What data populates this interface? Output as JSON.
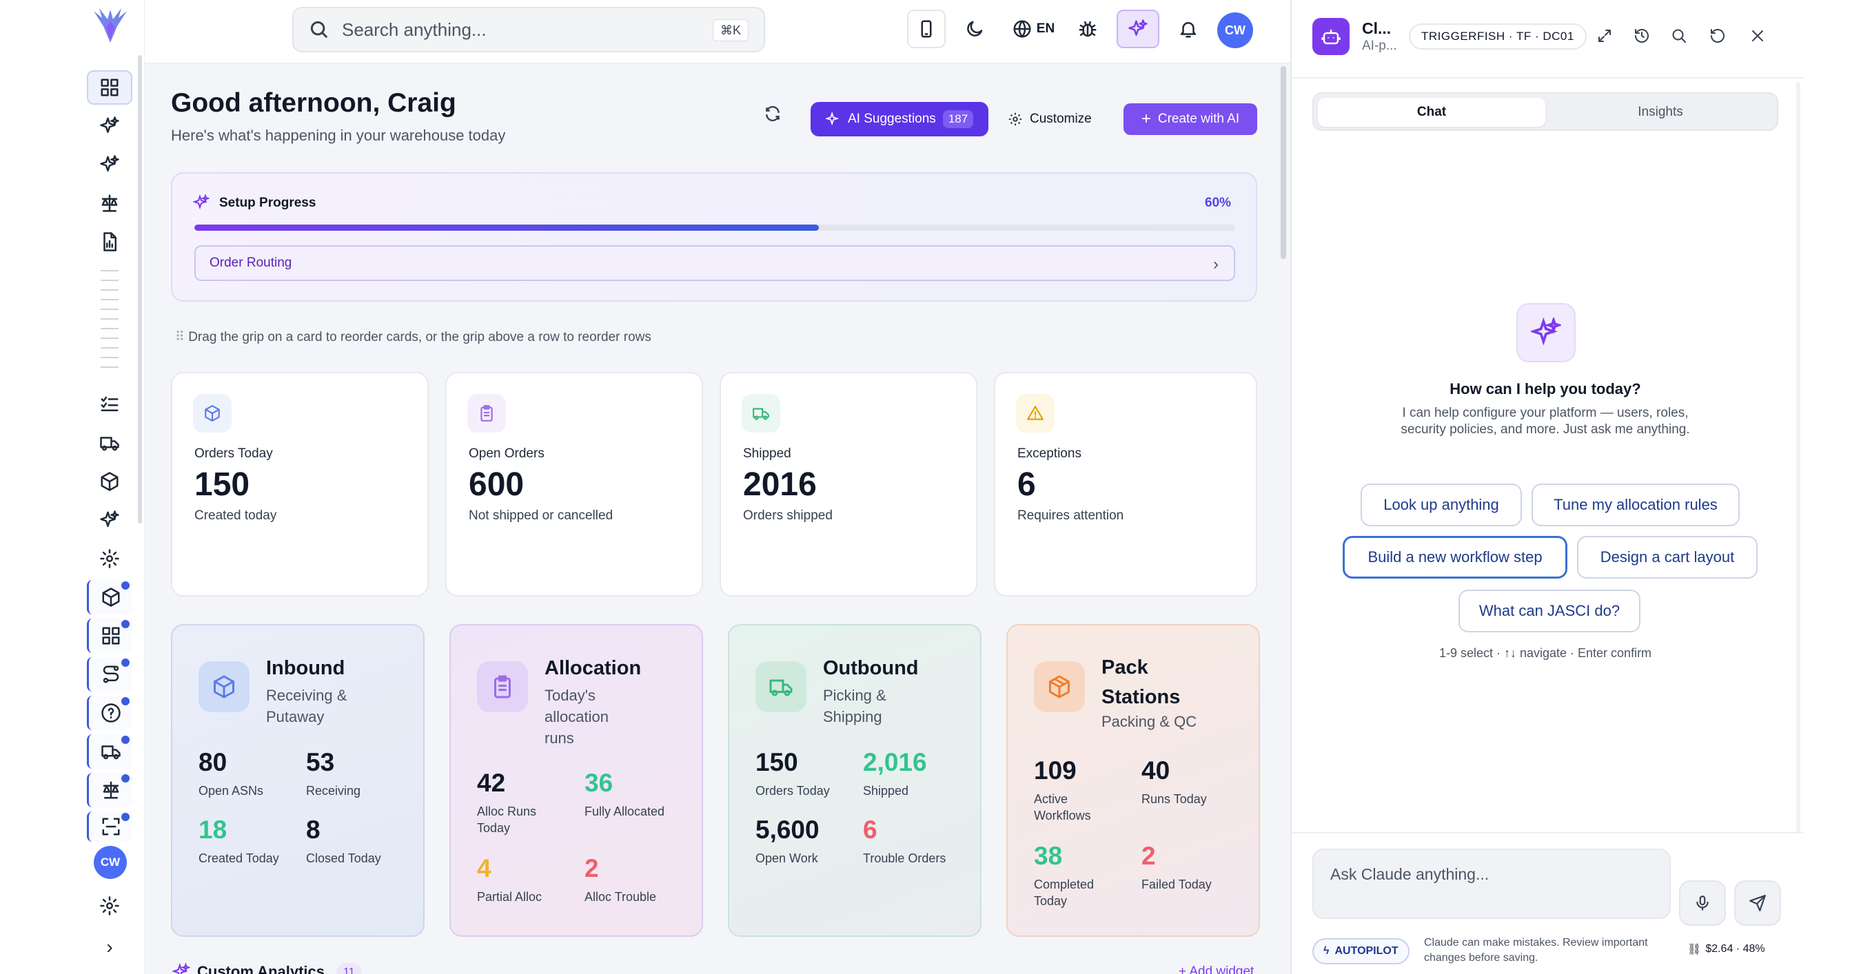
{
  "topbar": {
    "search_placeholder": "Search anything...",
    "search_shortcut": "⌘K",
    "language": "EN",
    "avatar_initials": "CW"
  },
  "sidebar": {
    "avatar_initials": "CW",
    "collapse_glyph": "›"
  },
  "header": {
    "greeting": "Good afternoon, Craig",
    "subtitle": "Here's what's happening in your warehouse today",
    "ai_suggestions_label": "AI Suggestions",
    "ai_suggestions_count": "187",
    "customize_label": "Customize",
    "create_label": "Create with AI"
  },
  "setup": {
    "title": "Setup Progress",
    "percent_label": "60%",
    "progress": 0.6,
    "current_step": "Order Routing"
  },
  "drag_hint": "Drag the grip on a card to reorder cards, or the grip above a row to reorder rows",
  "stats": [
    {
      "label": "Orders Today",
      "value": "150",
      "sub": "Created today",
      "icon": "box-icon"
    },
    {
      "label": "Open Orders",
      "value": "600",
      "sub": "Not shipped or cancelled",
      "icon": "clipboard-icon"
    },
    {
      "label": "Shipped",
      "value": "2016",
      "sub": "Orders shipped",
      "icon": "truck-icon"
    },
    {
      "label": "Exceptions",
      "value": "6",
      "sub": "Requires attention",
      "icon": "warning-icon"
    }
  ],
  "modules": {
    "inbound": {
      "title": "Inbound",
      "sub": "Receiving & Putaway",
      "metrics": [
        {
          "value": "80",
          "label": "Open ASNs"
        },
        {
          "value": "53",
          "label": "Receiving"
        },
        {
          "value": "18",
          "label": "Created Today"
        },
        {
          "value": "8",
          "label": "Closed Today"
        }
      ]
    },
    "allocation": {
      "title": "Allocation",
      "sub": "Today's allocation runs",
      "metrics": [
        {
          "value": "42",
          "label": "Alloc Runs Today"
        },
        {
          "value": "36",
          "label": "Fully Allocated"
        },
        {
          "value": "4",
          "label": "Partial Alloc"
        },
        {
          "value": "2",
          "label": "Alloc Trouble"
        }
      ]
    },
    "outbound": {
      "title": "Outbound",
      "sub": "Picking & Shipping",
      "metrics": [
        {
          "value": "150",
          "label": "Orders Today"
        },
        {
          "value": "2,016",
          "label": "Shipped"
        },
        {
          "value": "5,600",
          "label": "Open Work"
        },
        {
          "value": "6",
          "label": "Trouble Orders"
        }
      ]
    },
    "pack": {
      "title": "Pack Stations",
      "sub": "Packing & QC",
      "metrics": [
        {
          "value": "109",
          "label": "Active Workflows"
        },
        {
          "value": "40",
          "label": "Runs Today"
        },
        {
          "value": "38",
          "label": "Completed Today"
        },
        {
          "value": "2",
          "label": "Failed Today"
        }
      ]
    }
  },
  "custom_analytics": {
    "title": "Custom Analytics",
    "count": "11",
    "add_label": "+ Add widget"
  },
  "assistant": {
    "name": "Cl...",
    "sub": "AI-p...",
    "tenant": "TRIGGERFISH · TF · DC01",
    "tabs": [
      "Chat",
      "Insights"
    ],
    "hero_title": "How can I help you today?",
    "hero_text": "I can help configure your platform — users, roles, security policies, and more. Just ask me anything.",
    "suggestions": [
      "Look up anything",
      "Tune my allocation rules",
      "Build a new workflow step",
      "Design a cart layout",
      "What can JASCI do?"
    ],
    "keyboard_hint": "1-9 select · ↑↓ navigate · Enter confirm",
    "input_placeholder": "Ask Claude anything...",
    "autopilot_label": "AUTOPILOT",
    "disclaimer": "Claude can make mistakes. Review important changes before saving.",
    "cost": "$2.64 · 48%"
  },
  "colors": {
    "accent": "#7c3aed",
    "brand_blue": "#3b5bdb",
    "green_metric": "#34c38f",
    "orange_metric": "#f0b429",
    "red_metric": "#ef5f6b"
  }
}
